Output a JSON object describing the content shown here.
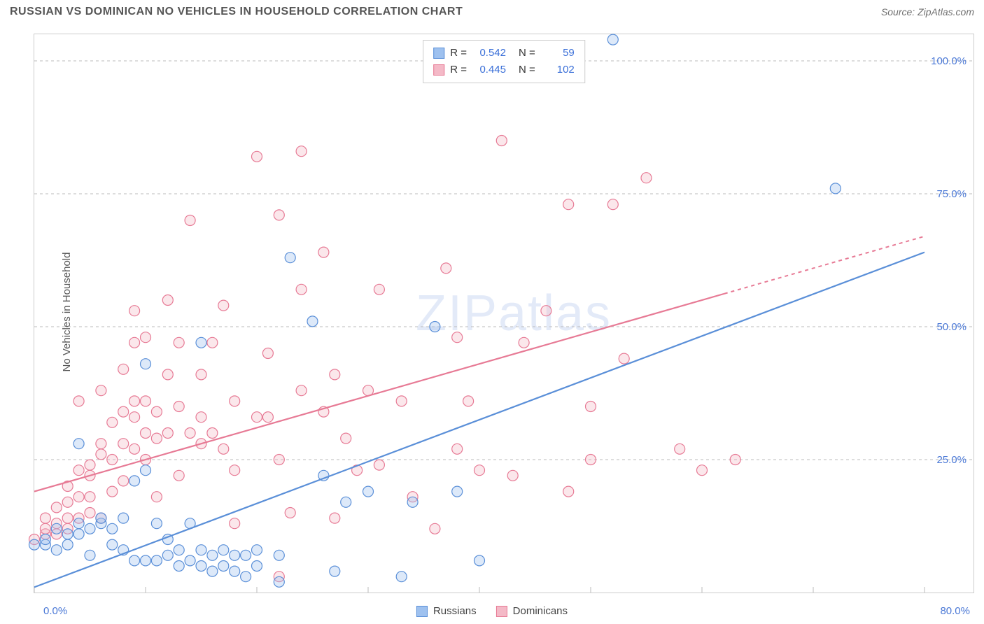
{
  "header": {
    "title": "RUSSIAN VS DOMINICAN NO VEHICLES IN HOUSEHOLD CORRELATION CHART",
    "source_prefix": "Source: ",
    "source_name": "ZipAtlas.com"
  },
  "watermark": "ZIPatlas",
  "chart": {
    "type": "scatter",
    "ylabel": "No Vehicles in Household",
    "xlim": [
      0,
      80
    ],
    "ylim": [
      0,
      105
    ],
    "x_ticks": [
      0,
      10,
      20,
      30,
      40,
      50,
      60,
      70,
      80
    ],
    "x_tick_labels_shown": {
      "0": "0.0%",
      "80": "80.0%"
    },
    "y_gridlines": [
      25,
      50,
      75,
      100
    ],
    "y_tick_labels": {
      "25": "25.0%",
      "50": "50.0%",
      "75": "75.0%",
      "100": "100.0%"
    },
    "background_color": "#ffffff",
    "grid_color": "#bbbbbb",
    "marker_radius": 7.5,
    "series": [
      {
        "name": "Russians",
        "fill": "#9ec1ef",
        "stroke": "#5a8fd8",
        "R": "0.542",
        "N": "59",
        "trend": {
          "x1": 0,
          "y1": 1,
          "x2": 80,
          "y2": 64,
          "dash_from_x": null
        },
        "points": [
          [
            0,
            9
          ],
          [
            1,
            9
          ],
          [
            1,
            10
          ],
          [
            2,
            8
          ],
          [
            2,
            12
          ],
          [
            3,
            9
          ],
          [
            3,
            11
          ],
          [
            4,
            11
          ],
          [
            4,
            13
          ],
          [
            4,
            28
          ],
          [
            5,
            7
          ],
          [
            5,
            12
          ],
          [
            6,
            13
          ],
          [
            6,
            14
          ],
          [
            7,
            9
          ],
          [
            7,
            12
          ],
          [
            8,
            8
          ],
          [
            8,
            14
          ],
          [
            9,
            6
          ],
          [
            9,
            21
          ],
          [
            10,
            6
          ],
          [
            10,
            23
          ],
          [
            10,
            43
          ],
          [
            11,
            6
          ],
          [
            11,
            13
          ],
          [
            12,
            7
          ],
          [
            12,
            10
          ],
          [
            13,
            5
          ],
          [
            13,
            8
          ],
          [
            14,
            6
          ],
          [
            14,
            13
          ],
          [
            15,
            5
          ],
          [
            15,
            8
          ],
          [
            15,
            47
          ],
          [
            16,
            4
          ],
          [
            16,
            7
          ],
          [
            17,
            5
          ],
          [
            17,
            8
          ],
          [
            18,
            4
          ],
          [
            18,
            7
          ],
          [
            19,
            3
          ],
          [
            19,
            7
          ],
          [
            20,
            5
          ],
          [
            20,
            8
          ],
          [
            22,
            2
          ],
          [
            22,
            7
          ],
          [
            23,
            63
          ],
          [
            25,
            51
          ],
          [
            26,
            22
          ],
          [
            27,
            4
          ],
          [
            28,
            17
          ],
          [
            30,
            19
          ],
          [
            33,
            3
          ],
          [
            34,
            17
          ],
          [
            36,
            50
          ],
          [
            38,
            19
          ],
          [
            40,
            6
          ],
          [
            52,
            104
          ],
          [
            72,
            76
          ]
        ]
      },
      {
        "name": "Dominicans",
        "fill": "#f4b9c7",
        "stroke": "#e77a95",
        "R": "0.445",
        "N": "102",
        "trend": {
          "x1": 0,
          "y1": 19,
          "x2": 80,
          "y2": 67,
          "dash_from_x": 62
        },
        "points": [
          [
            0,
            10
          ],
          [
            1,
            11
          ],
          [
            1,
            12
          ],
          [
            1,
            14
          ],
          [
            2,
            11
          ],
          [
            2,
            13
          ],
          [
            2,
            16
          ],
          [
            3,
            12
          ],
          [
            3,
            14
          ],
          [
            3,
            17
          ],
          [
            3,
            20
          ],
          [
            4,
            14
          ],
          [
            4,
            18
          ],
          [
            4,
            23
          ],
          [
            4,
            36
          ],
          [
            5,
            15
          ],
          [
            5,
            18
          ],
          [
            5,
            22
          ],
          [
            5,
            24
          ],
          [
            6,
            14
          ],
          [
            6,
            26
          ],
          [
            6,
            28
          ],
          [
            6,
            38
          ],
          [
            7,
            19
          ],
          [
            7,
            25
          ],
          [
            7,
            32
          ],
          [
            8,
            21
          ],
          [
            8,
            28
          ],
          [
            8,
            34
          ],
          [
            8,
            42
          ],
          [
            9,
            27
          ],
          [
            9,
            33
          ],
          [
            9,
            36
          ],
          [
            9,
            47
          ],
          [
            9,
            53
          ],
          [
            10,
            25
          ],
          [
            10,
            30
          ],
          [
            10,
            36
          ],
          [
            10,
            48
          ],
          [
            11,
            18
          ],
          [
            11,
            29
          ],
          [
            11,
            34
          ],
          [
            12,
            30
          ],
          [
            12,
            41
          ],
          [
            12,
            55
          ],
          [
            13,
            22
          ],
          [
            13,
            35
          ],
          [
            13,
            47
          ],
          [
            14,
            30
          ],
          [
            14,
            70
          ],
          [
            15,
            28
          ],
          [
            15,
            33
          ],
          [
            15,
            41
          ],
          [
            16,
            30
          ],
          [
            16,
            47
          ],
          [
            17,
            27
          ],
          [
            17,
            54
          ],
          [
            18,
            13
          ],
          [
            18,
            23
          ],
          [
            18,
            36
          ],
          [
            20,
            33
          ],
          [
            20,
            82
          ],
          [
            21,
            33
          ],
          [
            21,
            45
          ],
          [
            22,
            3
          ],
          [
            22,
            25
          ],
          [
            22,
            71
          ],
          [
            23,
            15
          ],
          [
            24,
            83
          ],
          [
            24,
            57
          ],
          [
            24,
            38
          ],
          [
            26,
            34
          ],
          [
            26,
            64
          ],
          [
            27,
            14
          ],
          [
            27,
            41
          ],
          [
            28,
            29
          ],
          [
            29,
            23
          ],
          [
            30,
            38
          ],
          [
            31,
            24
          ],
          [
            31,
            57
          ],
          [
            33,
            36
          ],
          [
            34,
            18
          ],
          [
            36,
            12
          ],
          [
            37,
            61
          ],
          [
            38,
            27
          ],
          [
            38,
            48
          ],
          [
            39,
            36
          ],
          [
            40,
            23
          ],
          [
            42,
            85
          ],
          [
            43,
            22
          ],
          [
            44,
            47
          ],
          [
            46,
            53
          ],
          [
            48,
            19
          ],
          [
            48,
            73
          ],
          [
            50,
            25
          ],
          [
            50,
            35
          ],
          [
            52,
            73
          ],
          [
            53,
            44
          ],
          [
            55,
            78
          ],
          [
            58,
            27
          ],
          [
            60,
            23
          ],
          [
            63,
            25
          ]
        ]
      }
    ]
  },
  "legend_bottom": [
    {
      "label": "Russians",
      "fill": "#9ec1ef",
      "stroke": "#5a8fd8"
    },
    {
      "label": "Dominicans",
      "fill": "#f4b9c7",
      "stroke": "#e77a95"
    }
  ]
}
